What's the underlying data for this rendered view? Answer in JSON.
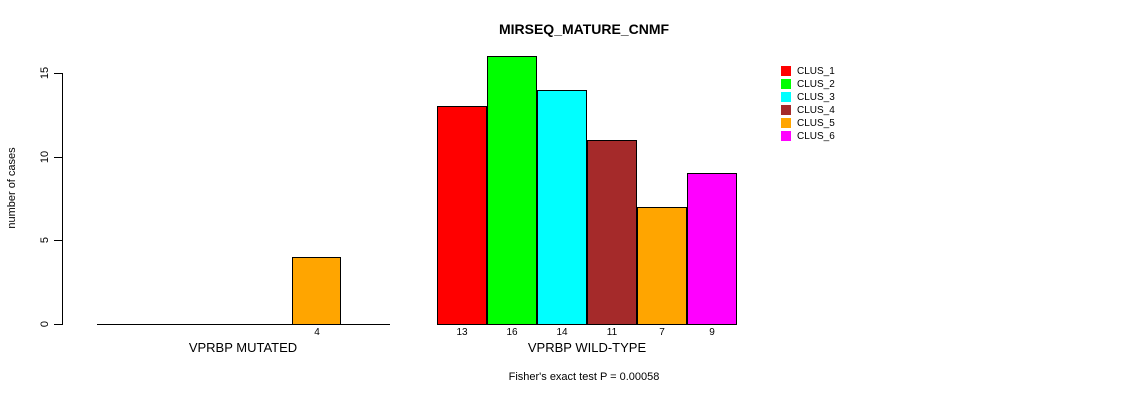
{
  "chart_data": {
    "type": "bar",
    "title": "MIRSEQ_MATURE_CNMF",
    "ylabel": "number of cases",
    "xlabel": "",
    "ylim": [
      0,
      15
    ],
    "yticks": [
      0,
      5,
      10,
      15
    ],
    "grid": false,
    "legend_position": "right",
    "categories": [
      "VPRBP MUTATED",
      "VPRBP WILD-TYPE"
    ],
    "series": [
      {
        "name": "CLUS_1",
        "color": "#FF0000",
        "values": [
          0,
          13
        ]
      },
      {
        "name": "CLUS_2",
        "color": "#00FF00",
        "values": [
          0,
          16
        ]
      },
      {
        "name": "CLUS_3",
        "color": "#00FFFF",
        "values": [
          0,
          14
        ]
      },
      {
        "name": "CLUS_4",
        "color": "#A52A2A",
        "values": [
          0,
          11
        ]
      },
      {
        "name": "CLUS_5",
        "color": "#FFA500",
        "values": [
          4,
          7
        ]
      },
      {
        "name": "CLUS_6",
        "color": "#FF00FF",
        "values": [
          0,
          9
        ]
      }
    ],
    "bar_labels": [
      [
        "",
        "",
        "",
        "",
        "4",
        ""
      ],
      [
        "13",
        "16",
        "14",
        "11",
        "7",
        "9"
      ]
    ],
    "footnote": "Fisher's exact test P = 0.00058",
    "text_color": "#000000",
    "axis_color": "#000000",
    "background_color": "#FFFFFF"
  }
}
